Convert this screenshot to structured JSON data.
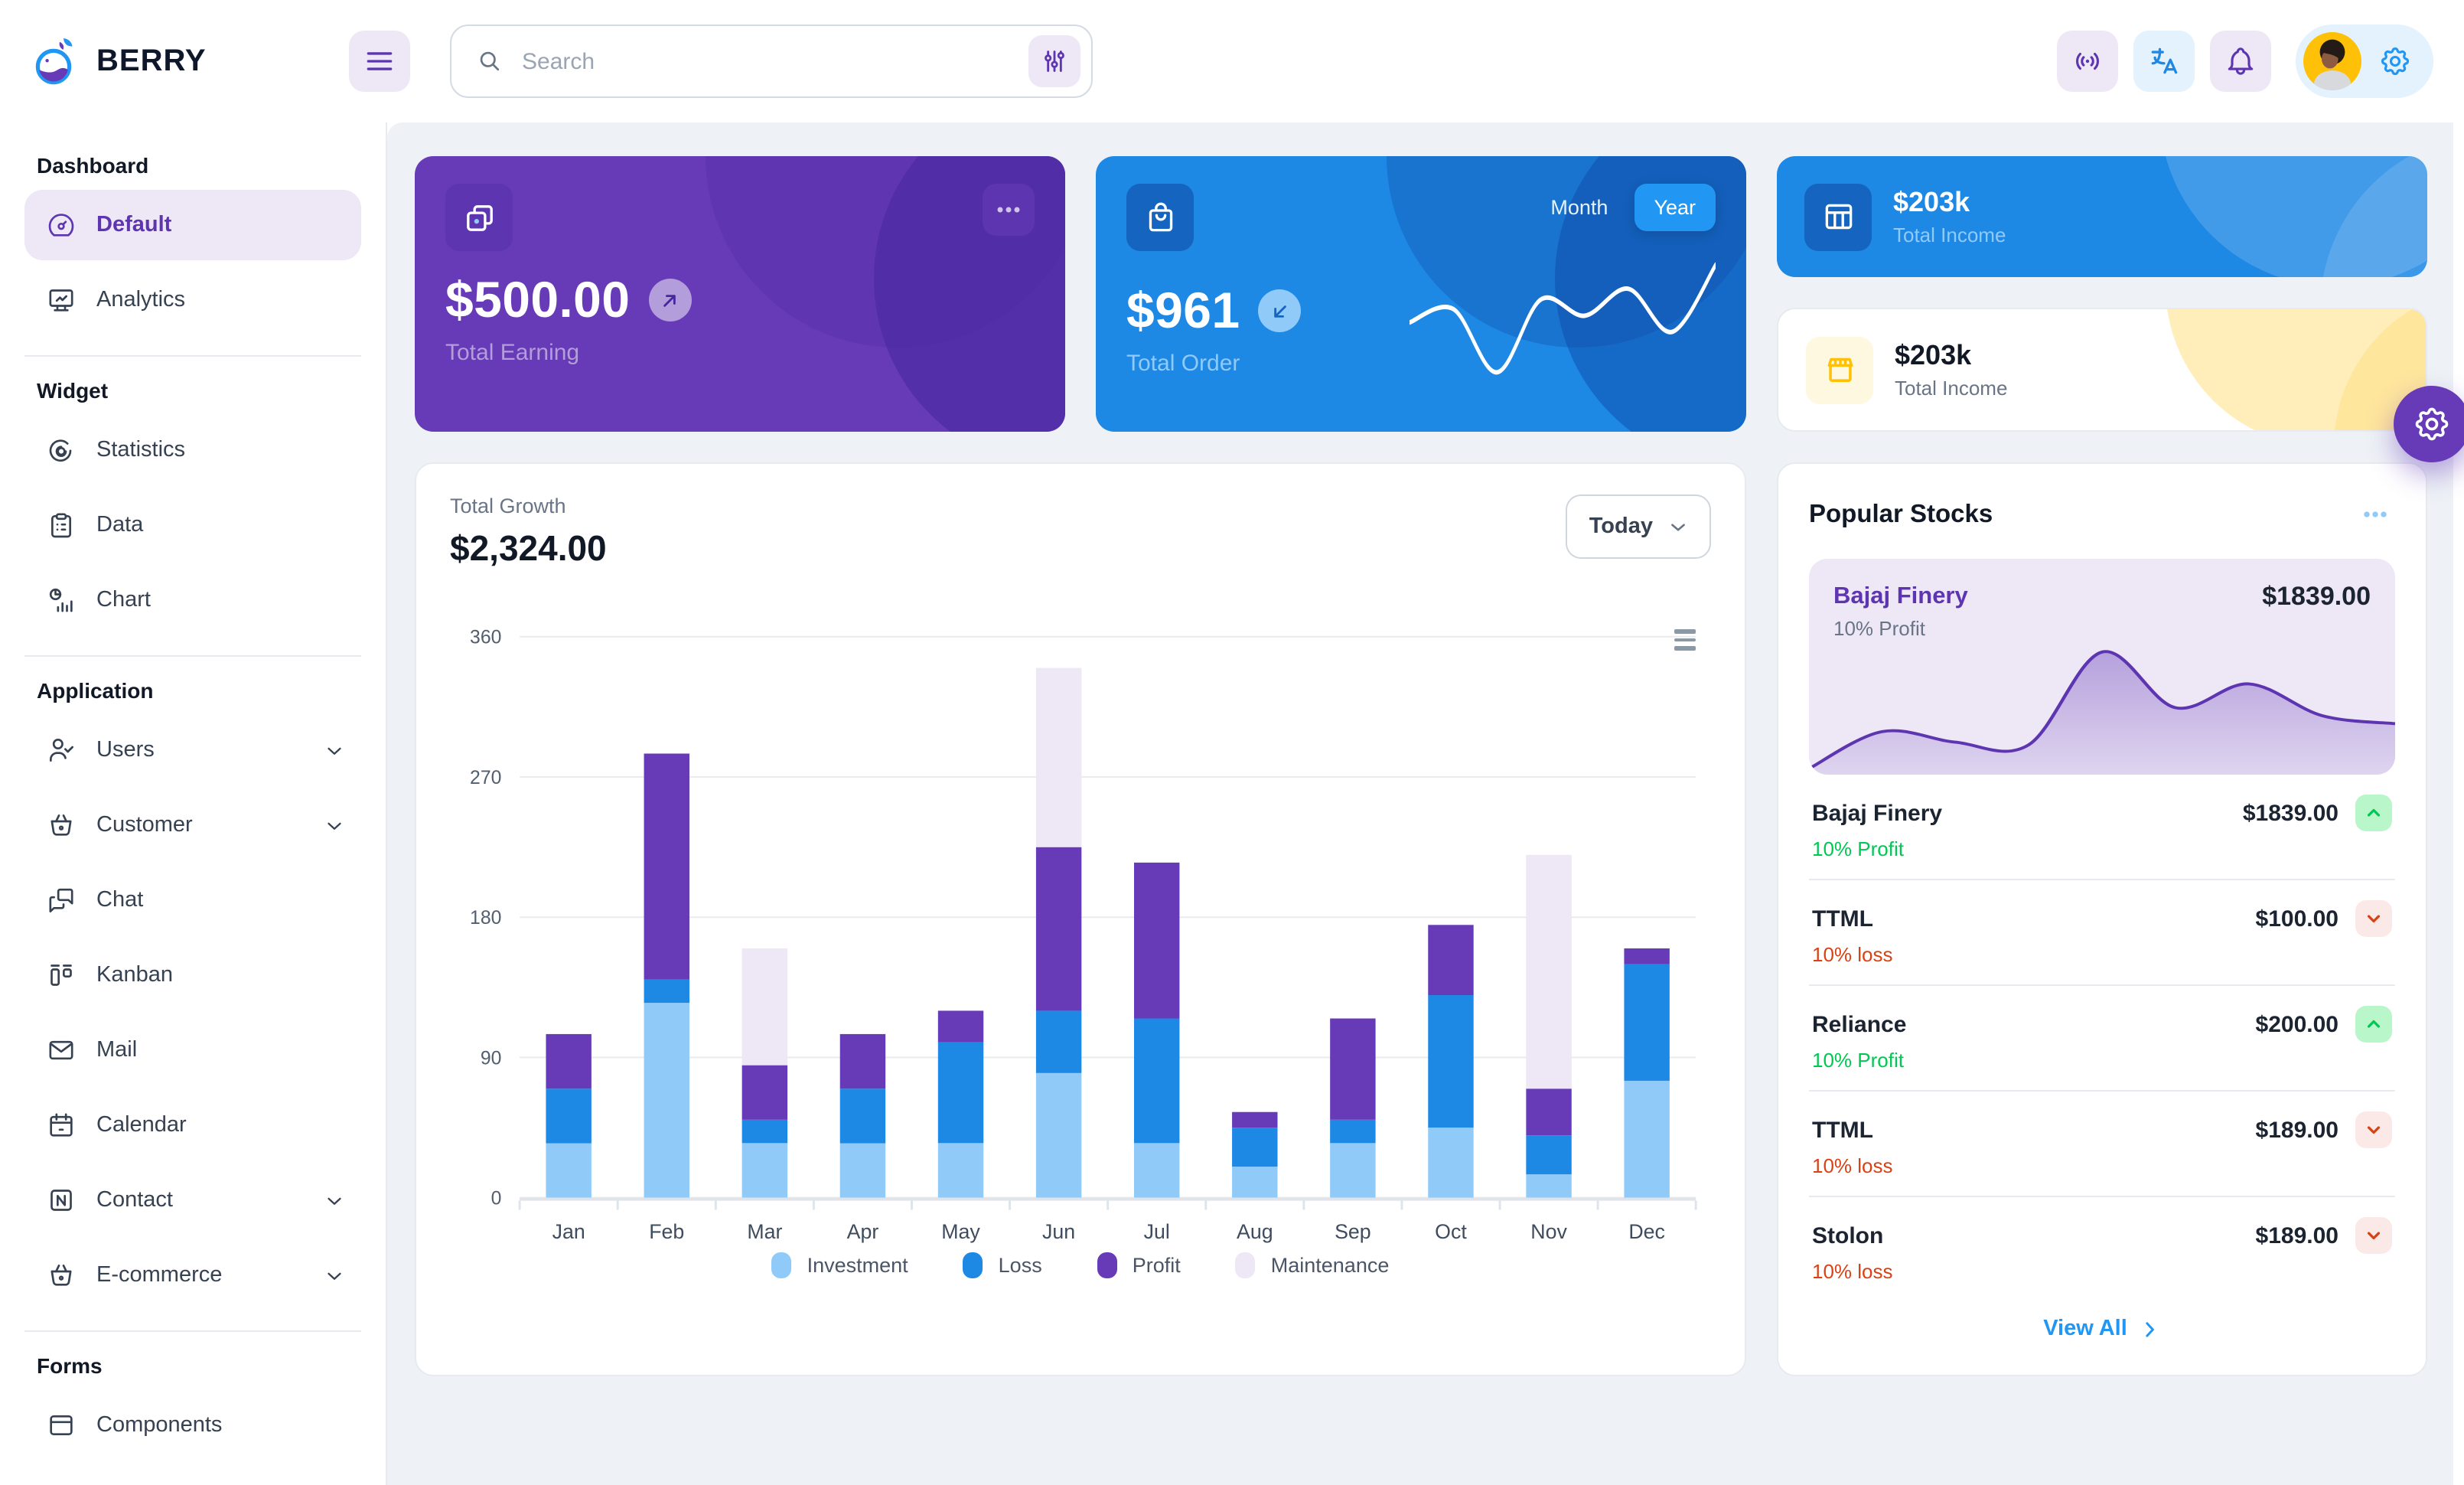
{
  "header": {
    "brand": "BERRY",
    "search_placeholder": "Search"
  },
  "sidebar": {
    "sections": [
      {
        "label": "Dashboard",
        "items": [
          {
            "label": "Default",
            "icon": "dashboard",
            "active": true
          },
          {
            "label": "Analytics",
            "icon": "analytics"
          }
        ]
      },
      {
        "label": "Widget",
        "items": [
          {
            "label": "Statistics",
            "icon": "statistics"
          },
          {
            "label": "Data",
            "icon": "data"
          },
          {
            "label": "Chart",
            "icon": "chart"
          }
        ]
      },
      {
        "label": "Application",
        "items": [
          {
            "label": "Users",
            "icon": "users",
            "expandable": true
          },
          {
            "label": "Customer",
            "icon": "customer",
            "expandable": true
          },
          {
            "label": "Chat",
            "icon": "chat"
          },
          {
            "label": "Kanban",
            "icon": "kanban"
          },
          {
            "label": "Mail",
            "icon": "mail"
          },
          {
            "label": "Calendar",
            "icon": "calendar"
          },
          {
            "label": "Contact",
            "icon": "contact",
            "expandable": true
          },
          {
            "label": "E-commerce",
            "icon": "ecommerce",
            "expandable": true
          }
        ]
      },
      {
        "label": "Forms",
        "items": [
          {
            "label": "Components",
            "icon": "components"
          }
        ]
      }
    ]
  },
  "cards": {
    "earning": {
      "amount": "$500.00",
      "label": "Total Earning"
    },
    "order": {
      "amount": "$961",
      "label": "Total Order",
      "toggle_month": "Month",
      "toggle_year": "Year",
      "active_toggle": "Year"
    },
    "income_dark": {
      "amount": "$203k",
      "label": "Total Income"
    },
    "income_light": {
      "amount": "$203k",
      "label": "Total Income"
    }
  },
  "growth_panel": {
    "label": "Total Growth",
    "amount": "$2,324.00",
    "period_selector": "Today"
  },
  "stocks_panel": {
    "title": "Popular Stocks",
    "featured": {
      "name": "Bajaj Finery",
      "price": "$1839.00",
      "change": "10% Profit"
    },
    "rows": [
      {
        "name": "Bajaj Finery",
        "price": "$1839.00",
        "change": "10% Profit",
        "direction": "up"
      },
      {
        "name": "TTML",
        "price": "$100.00",
        "change": "10% loss",
        "direction": "down"
      },
      {
        "name": "Reliance",
        "price": "$200.00",
        "change": "10% Profit",
        "direction": "up"
      },
      {
        "name": "TTML",
        "price": "$189.00",
        "change": "10% loss",
        "direction": "down"
      },
      {
        "name": "Stolon",
        "price": "$189.00",
        "change": "10% loss",
        "direction": "down"
      }
    ],
    "view_all": "View All"
  },
  "colors": {
    "primary": "#2196f3",
    "primary_dark": "#1e88e5",
    "primary_200": "#90caf9",
    "secondary": "#673ab7",
    "secondary_dark": "#5e35b1",
    "secondary_200": "#b39ddb",
    "secondary_light": "#ede7f6",
    "success": "#00c853",
    "loss_red": "#d84315",
    "warning": "#ffc107",
    "page_bg": "#eef2f6"
  },
  "chart_data": [
    {
      "id": "total-growth",
      "type": "bar",
      "stacked": true,
      "title": "Total Growth",
      "xlabel": "",
      "ylabel": "",
      "categories": [
        "Jan",
        "Feb",
        "Mar",
        "Apr",
        "May",
        "Jun",
        "Jul",
        "Aug",
        "Sep",
        "Oct",
        "Nov",
        "Dec"
      ],
      "series": [
        {
          "name": "Investment",
          "color": "#90caf9",
          "values": [
            35,
            125,
            35,
            35,
            35,
            80,
            35,
            20,
            35,
            45,
            15,
            75
          ]
        },
        {
          "name": "Loss",
          "color": "#1e88e5",
          "values": [
            35,
            15,
            15,
            35,
            65,
            40,
            80,
            25,
            15,
            85,
            25,
            75
          ]
        },
        {
          "name": "Profit",
          "color": "#673ab7",
          "values": [
            35,
            145,
            35,
            35,
            20,
            105,
            100,
            10,
            65,
            45,
            30,
            10
          ]
        },
        {
          "name": "Maintenance",
          "color": "#ede7f6",
          "values": [
            0,
            0,
            75,
            0,
            0,
            115,
            0,
            0,
            0,
            0,
            150,
            0
          ]
        }
      ],
      "ylim": [
        0,
        360
      ],
      "yticks": [
        0,
        90,
        180,
        270,
        360
      ],
      "grid": true,
      "legend_position": "bottom"
    },
    {
      "id": "total-order-sparkline",
      "type": "line",
      "color": "#ffffff",
      "values": [
        45,
        55,
        8,
        62,
        50,
        70,
        38,
        88
      ]
    },
    {
      "id": "bajaj-finery-sparkline",
      "type": "area",
      "color": "#5e35b1",
      "fill": "#b39ddb",
      "values": [
        2,
        30,
        22,
        20,
        90,
        48,
        66,
        42,
        36
      ]
    }
  ]
}
